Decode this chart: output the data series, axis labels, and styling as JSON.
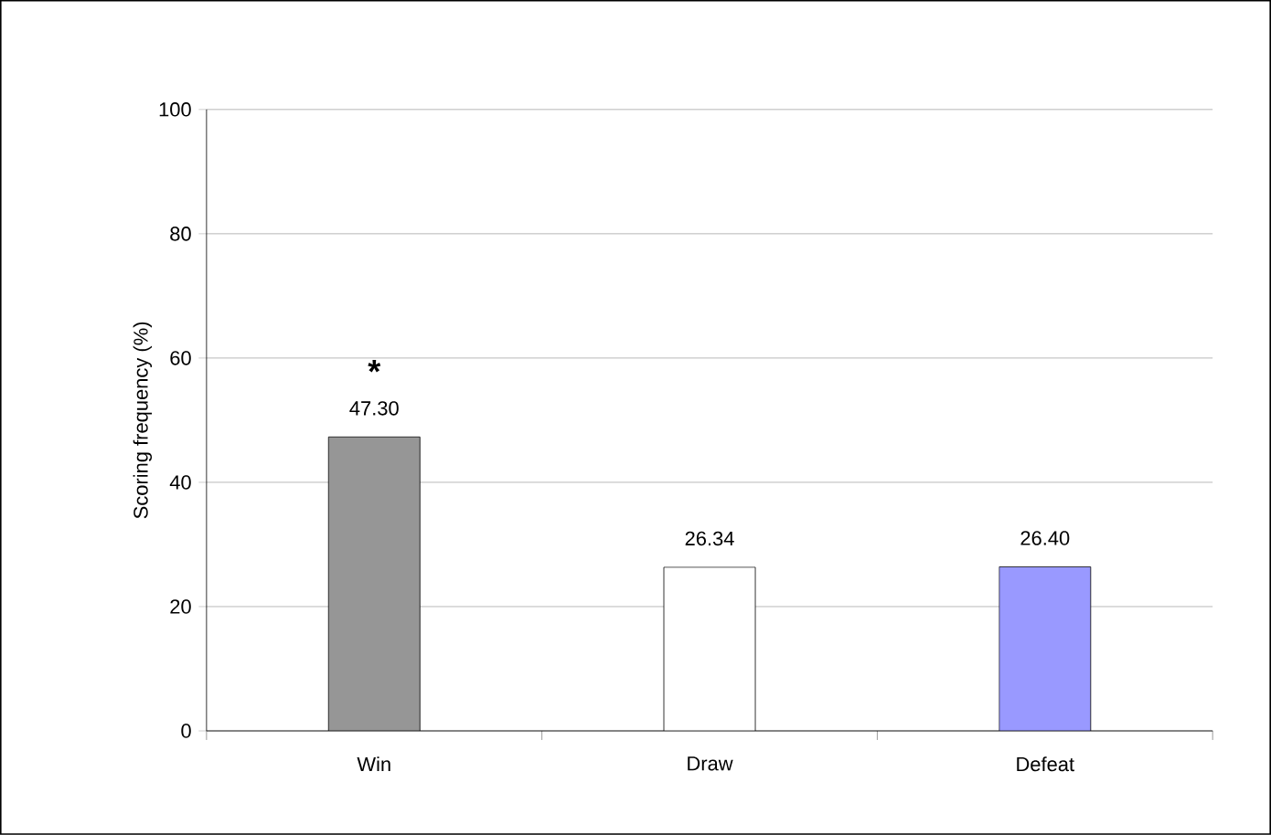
{
  "chart_data": {
    "type": "bar",
    "ylabel": "Scoring frequency (%)",
    "categories": [
      "Win",
      "Draw",
      "Defeat"
    ],
    "values": [
      47.3,
      26.34,
      26.4
    ],
    "colors": [
      "#969696",
      "#ffffff",
      "#9999ff"
    ],
    "value_labels": [
      "47.30",
      "26.34",
      "26.40"
    ],
    "ylim": [
      0,
      100
    ],
    "yticks": [
      0,
      20,
      40,
      60,
      80,
      100
    ],
    "grid": "y",
    "annotations": [
      "*"
    ]
  }
}
